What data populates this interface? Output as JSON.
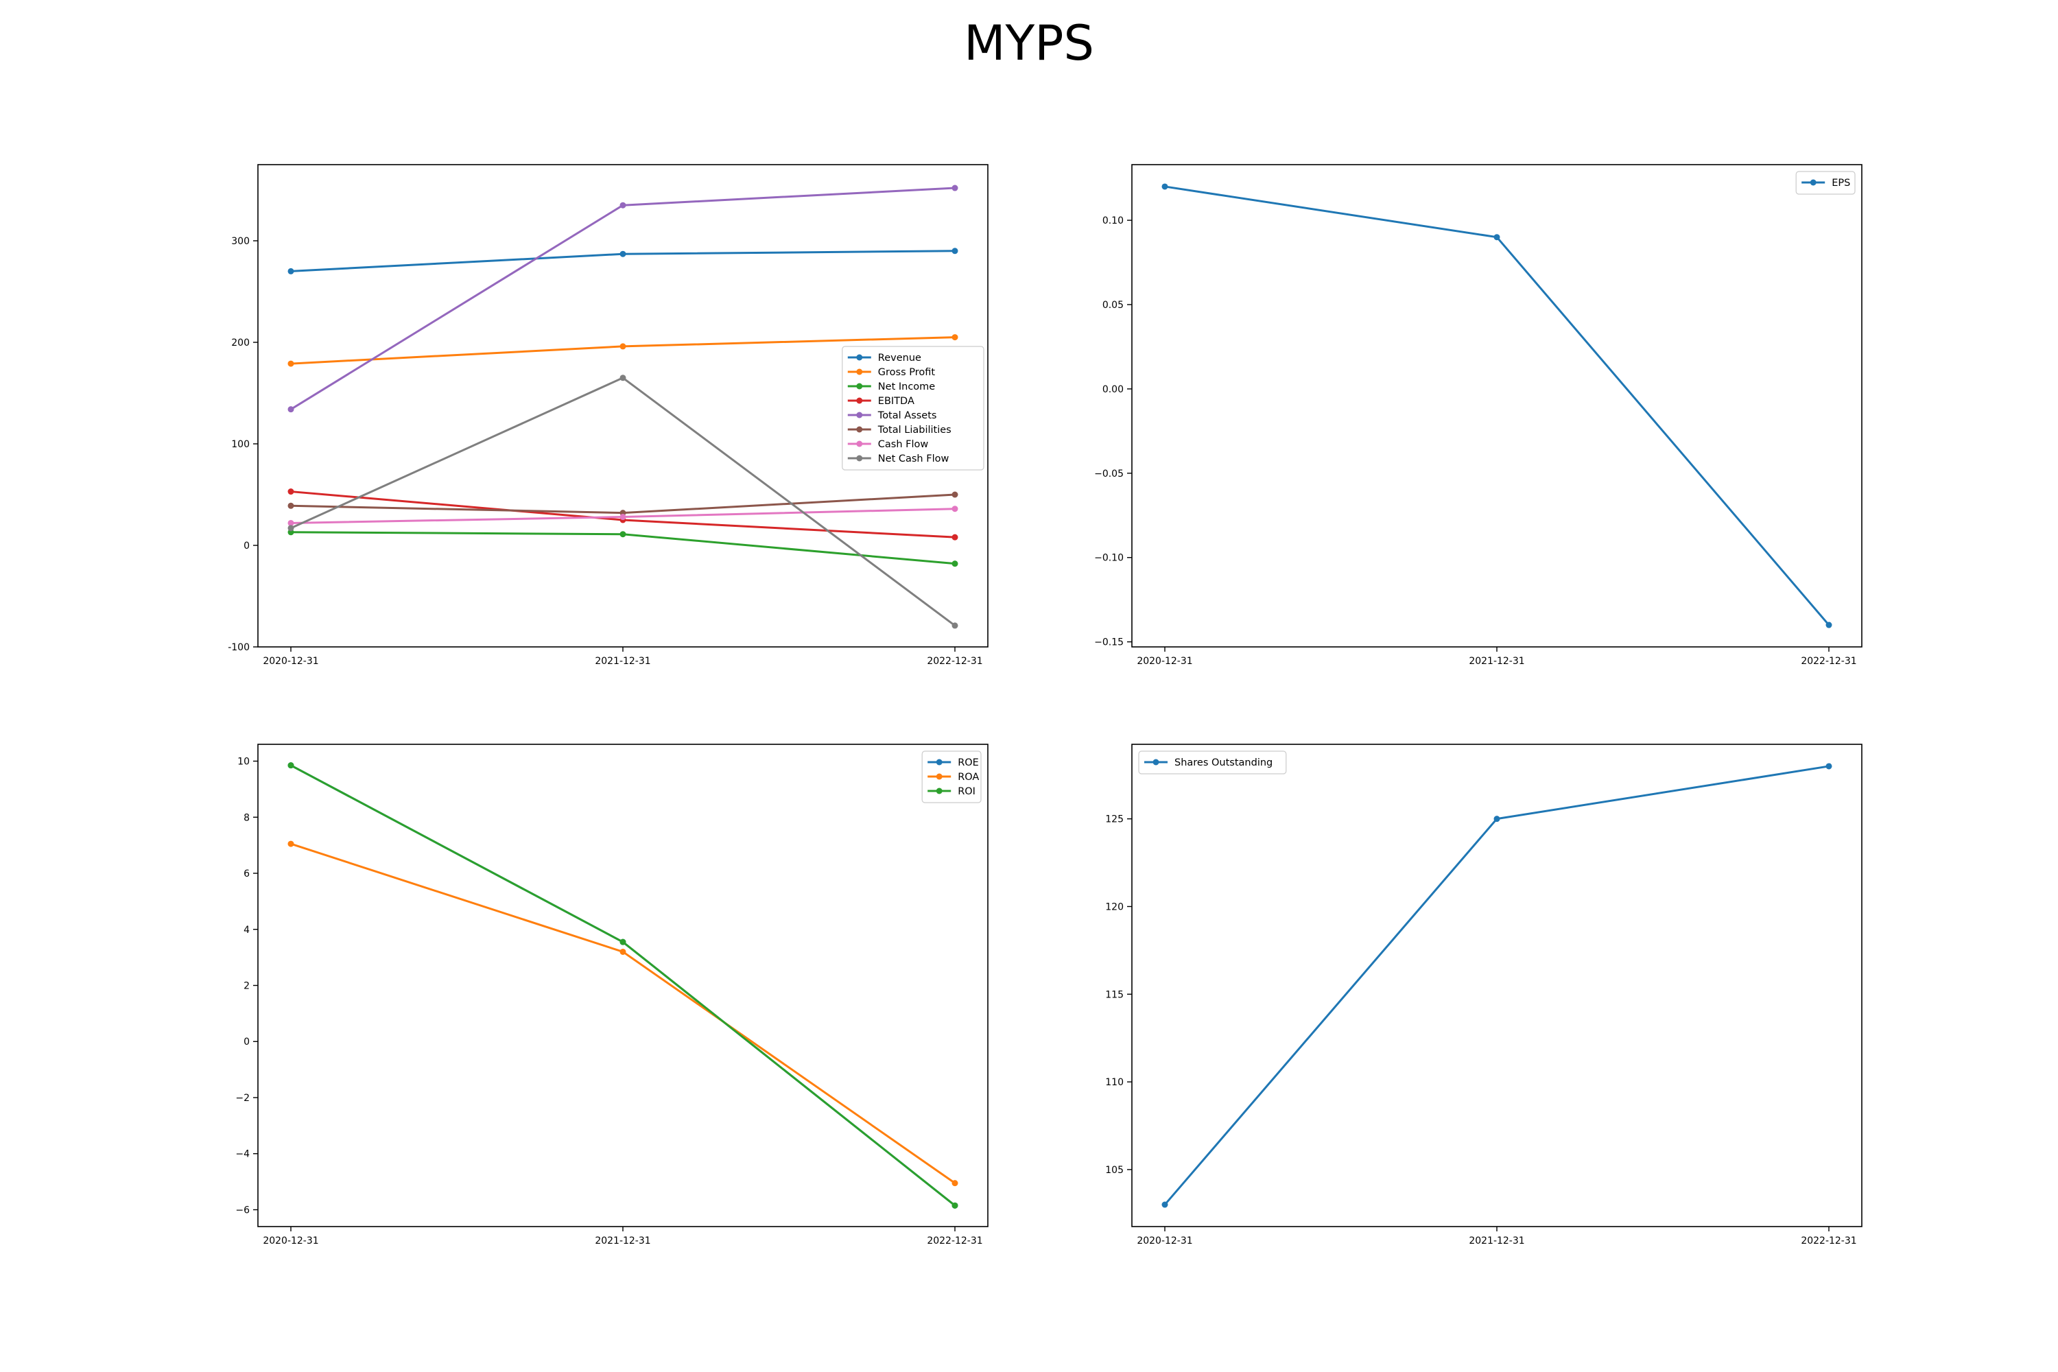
{
  "figure": {
    "title": "MYPS"
  },
  "chart_data": [
    {
      "id": "financials",
      "type": "line",
      "x": [
        "2020-12-31",
        "2021-12-31",
        "2022-12-31"
      ],
      "ylim": [
        -100,
        375
      ],
      "yticks": [
        -100,
        0,
        100,
        200,
        300
      ],
      "legend_position": "center-right",
      "series": [
        {
          "name": "Revenue",
          "color": "#1f77b4",
          "values": [
            270,
            287,
            290
          ]
        },
        {
          "name": "Gross Profit",
          "color": "#ff7f0e",
          "values": [
            179,
            196,
            205
          ]
        },
        {
          "name": "Net Income",
          "color": "#2ca02c",
          "values": [
            13,
            11,
            -18
          ]
        },
        {
          "name": "EBITDA",
          "color": "#d62728",
          "values": [
            53,
            25,
            8
          ]
        },
        {
          "name": "Total Assets",
          "color": "#9467bd",
          "values": [
            134,
            335,
            352
          ]
        },
        {
          "name": "Total Liabilities",
          "color": "#8c564b",
          "values": [
            39,
            32,
            50
          ]
        },
        {
          "name": "Cash Flow",
          "color": "#e377c2",
          "values": [
            22,
            28,
            36
          ]
        },
        {
          "name": "Net Cash Flow",
          "color": "#7f7f7f",
          "values": [
            17,
            165,
            -79
          ]
        }
      ]
    },
    {
      "id": "eps",
      "type": "line",
      "x": [
        "2020-12-31",
        "2021-12-31",
        "2022-12-31"
      ],
      "ylim": [
        -0.153,
        0.133
      ],
      "yticks": [
        -0.15,
        -0.1,
        -0.05,
        0.0,
        0.05,
        0.1
      ],
      "ytick_labels": [
        "−0.15",
        "−0.10",
        "−0.05",
        "0.00",
        "0.05",
        "0.10"
      ],
      "legend_position": "upper-right",
      "series": [
        {
          "name": "EPS",
          "color": "#1f77b4",
          "values": [
            0.12,
            0.09,
            -0.14
          ]
        }
      ]
    },
    {
      "id": "ratios",
      "type": "line",
      "x": [
        "2020-12-31",
        "2021-12-31",
        "2022-12-31"
      ],
      "ylim": [
        -6.6,
        10.6
      ],
      "yticks": [
        -6,
        -4,
        -2,
        0,
        2,
        4,
        6,
        8,
        10
      ],
      "ytick_labels": [
        "−6",
        "−4",
        "−2",
        "0",
        "2",
        "4",
        "6",
        "8",
        "10"
      ],
      "legend_position": "upper-right",
      "series": [
        {
          "name": "ROE",
          "color": "#1f77b4",
          "values": [
            9.85,
            3.55,
            -5.85
          ]
        },
        {
          "name": "ROA",
          "color": "#ff7f0e",
          "values": [
            7.05,
            3.2,
            -5.05
          ]
        },
        {
          "name": "ROI",
          "color": "#2ca02c",
          "values": [
            9.85,
            3.55,
            -5.85
          ]
        }
      ]
    },
    {
      "id": "shares",
      "type": "line",
      "x": [
        "2020-12-31",
        "2021-12-31",
        "2022-12-31"
      ],
      "ylim": [
        101.75,
        129.25
      ],
      "yticks": [
        105,
        110,
        115,
        120,
        125
      ],
      "legend_position": "upper-left",
      "series": [
        {
          "name": "Shares Outstanding",
          "color": "#1f77b4",
          "values": [
            103,
            125,
            128
          ]
        }
      ]
    }
  ]
}
